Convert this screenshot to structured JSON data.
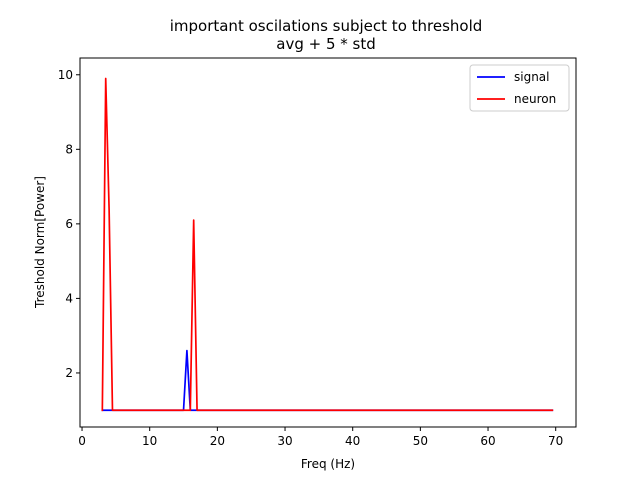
{
  "chart_data": {
    "type": "line",
    "title": "important oscilations subject to threshold",
    "subtitle": "avg + 5 * std",
    "xlabel": "Freq (Hz)",
    "ylabel": "Treshold Norm[Power]",
    "xlim": [
      -0.3,
      73.0
    ],
    "ylim": [
      0.55,
      10.45
    ],
    "xticks": [
      0,
      10,
      20,
      30,
      40,
      50,
      60,
      70
    ],
    "yticks": [
      2,
      4,
      6,
      8,
      10
    ],
    "grid": false,
    "legend": "top-right",
    "series": [
      {
        "name": "signal",
        "color": "#0000ff",
        "x": [
          3.0,
          15.0,
          15.5,
          16.0,
          69.5
        ],
        "y": [
          1.0,
          1.0,
          2.6,
          1.0,
          1.0
        ]
      },
      {
        "name": "neuron",
        "color": "#ff0000",
        "x": [
          3.0,
          3.5,
          4.0,
          4.5,
          16.0,
          16.5,
          17.0,
          69.5
        ],
        "y": [
          1.0,
          9.9,
          6.4,
          1.0,
          1.0,
          6.1,
          1.0,
          1.0
        ]
      }
    ]
  }
}
